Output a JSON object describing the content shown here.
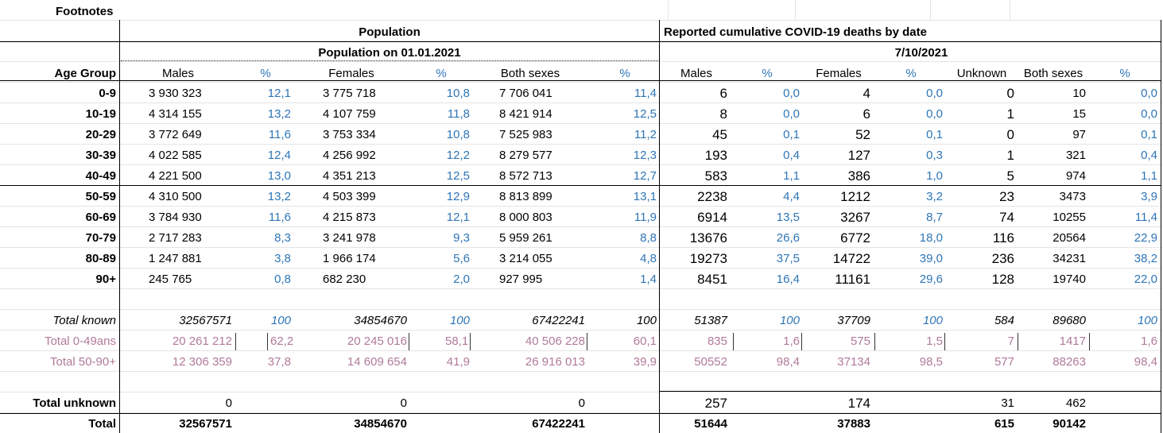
{
  "footnotes_label": "Footnotes",
  "population_header": "Population",
  "population_date": "Population on 01.01.2021",
  "deaths_header": "Reported cumulative COVID-19 deaths by date",
  "deaths_date": "7/10/2021",
  "col_headers": {
    "age_group": "Age Group",
    "males": "Males",
    "pct": "%",
    "females": "Females",
    "both": "Both sexes",
    "unknown": "Unknown"
  },
  "rows": [
    {
      "age": "0-9",
      "pm": "3 930 323",
      "pmp": "12,1",
      "pf": "3 775 718",
      "pfp": "10,8",
      "pb": "7 706 041",
      "pbp": "11,4",
      "dm": "6",
      "dmp": "0,0",
      "df": "4",
      "dfp": "0,0",
      "du": "0",
      "db": "10",
      "dbp": "0,0"
    },
    {
      "age": "10-19",
      "pm": "4 314 155",
      "pmp": "13,2",
      "pf": "4 107 759",
      "pfp": "11,8",
      "pb": "8 421 914",
      "pbp": "12,5",
      "dm": "8",
      "dmp": "0,0",
      "df": "6",
      "dfp": "0,0",
      "du": "1",
      "db": "15",
      "dbp": "0,0"
    },
    {
      "age": "20-29",
      "pm": "3 772 649",
      "pmp": "11,6",
      "pf": "3 753 334",
      "pfp": "10,8",
      "pb": "7 525 983",
      "pbp": "11,2",
      "dm": "45",
      "dmp": "0,1",
      "df": "52",
      "dfp": "0,1",
      "du": "0",
      "db": "97",
      "dbp": "0,1"
    },
    {
      "age": "30-39",
      "pm": "4 022 585",
      "pmp": "12,4",
      "pf": "4 256 992",
      "pfp": "12,2",
      "pb": "8 279 577",
      "pbp": "12,3",
      "dm": "193",
      "dmp": "0,4",
      "df": "127",
      "dfp": "0,3",
      "du": "1",
      "db": "321",
      "dbp": "0,4"
    },
    {
      "age": "40-49",
      "pm": "4 221 500",
      "pmp": "13,0",
      "pf": "4 351 213",
      "pfp": "12,5",
      "pb": "8 572 713",
      "pbp": "12,7",
      "dm": "583",
      "dmp": "1,1",
      "df": "386",
      "dfp": "1,0",
      "du": "5",
      "db": "974",
      "dbp": "1,1"
    },
    {
      "age": "50-59",
      "pm": "4 310 500",
      "pmp": "13,2",
      "pf": "4 503 399",
      "pfp": "12,9",
      "pb": "8 813 899",
      "pbp": "13,1",
      "dm": "2238",
      "dmp": "4,4",
      "df": "1212",
      "dfp": "3,2",
      "du": "23",
      "db": "3473",
      "dbp": "3,9"
    },
    {
      "age": "60-69",
      "pm": "3 784 930",
      "pmp": "11,6",
      "pf": "4 215 873",
      "pfp": "12,1",
      "pb": "8 000 803",
      "pbp": "11,9",
      "dm": "6914",
      "dmp": "13,5",
      "df": "3267",
      "dfp": "8,7",
      "du": "74",
      "db": "10255",
      "dbp": "11,4"
    },
    {
      "age": "70-79",
      "pm": "2 717 283",
      "pmp": "8,3",
      "pf": "3 241 978",
      "pfp": "9,3",
      "pb": "5 959 261",
      "pbp": "8,8",
      "dm": "13676",
      "dmp": "26,6",
      "df": "6772",
      "dfp": "18,0",
      "du": "116",
      "db": "20564",
      "dbp": "22,9"
    },
    {
      "age": "80-89",
      "pm": "1 247 881",
      "pmp": "3,8",
      "pf": "1 966 174",
      "pfp": "5,6",
      "pb": "3 214 055",
      "pbp": "4,8",
      "dm": "19273",
      "dmp": "37,5",
      "df": "14722",
      "dfp": "39,0",
      "du": "236",
      "db": "34231",
      "dbp": "38,2"
    },
    {
      "age": "90+",
      "pm": "245 765",
      "pmp": "0,8",
      "pf": "682 230",
      "pfp": "2,0",
      "pb": "927 995",
      "pbp": "1,4",
      "dm": "8451",
      "dmp": "16,4",
      "df": "11161",
      "dfp": "29,6",
      "du": "128",
      "db": "19740",
      "dbp": "22,0"
    }
  ],
  "total_known": {
    "label": "Total known",
    "pm": "32567571",
    "pmp": "100",
    "pf": "34854670",
    "pfp": "100",
    "pb": "67422241",
    "pbp": "100",
    "dm": "51387",
    "dmp": "100",
    "df": "37709",
    "dfp": "100",
    "du": "584",
    "db": "89680",
    "dbp": "100"
  },
  "total_0_49": {
    "label": "Total 0-49ans",
    "pm": "20 261 212",
    "pmp": "62,2",
    "pf": "20 245 016",
    "pfp": "58,1",
    "pb": "40 506 228",
    "pbp": "60,1",
    "dm": "835",
    "dmp": "1,6",
    "df": "575",
    "dfp": "1,5",
    "du": "7",
    "db": "1417",
    "dbp": "1,6"
  },
  "total_50_90": {
    "label": "Total 50-90+",
    "pm": "12 306 359",
    "pmp": "37,8",
    "pf": "14 609 654",
    "pfp": "41,9",
    "pb": "26 916 013",
    "pbp": "39,9",
    "dm": "50552",
    "dmp": "98,4",
    "df": "37134",
    "dfp": "98,5",
    "du": "577",
    "db": "88263",
    "dbp": "98,4"
  },
  "total_unknown": {
    "label": "Total unknown",
    "pm": "0",
    "pf": "0",
    "pb": "0",
    "dm": "257",
    "df": "174",
    "du": "31",
    "db": "462"
  },
  "total": {
    "label": "Total",
    "pm": "32567571",
    "pf": "34854670",
    "pb": "67422241",
    "dm": "51644",
    "df": "37883",
    "du": "615",
    "db": "90142"
  },
  "colors": {
    "pct_blue": "#2e75b6",
    "total_pink": "#b07a9a",
    "gridline": "#e4e4e4"
  }
}
